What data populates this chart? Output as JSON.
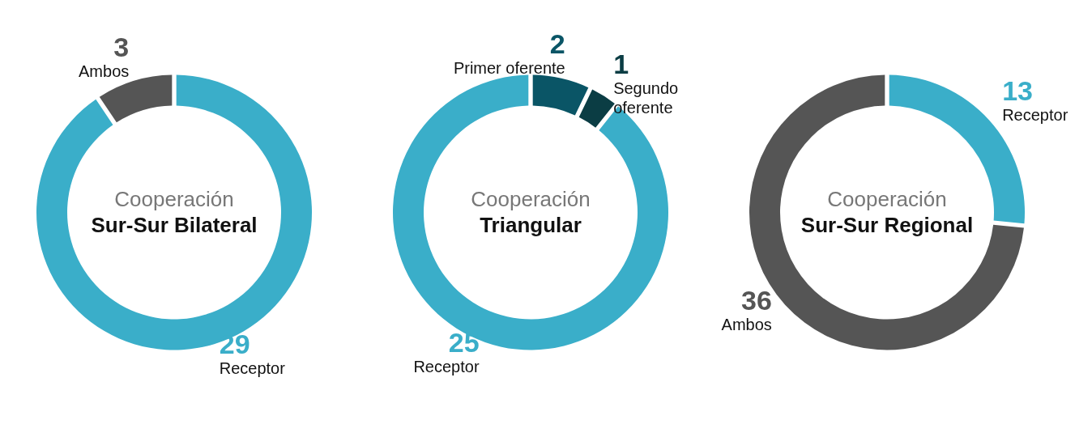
{
  "chart_data": [
    {
      "type": "donut",
      "title": "Cooperación",
      "subtitle": "Sur-Sur Bilateral",
      "categories": [
        "Receptor",
        "Ambos"
      ],
      "values": [
        29,
        3
      ],
      "colors": [
        "#3aaec9",
        "#555555"
      ],
      "data_labels": true
    },
    {
      "type": "donut",
      "title": "Cooperación",
      "subtitle": "Triangular",
      "categories": [
        "Primer oferente",
        "Segundo oferente",
        "Receptor"
      ],
      "values": [
        2,
        1,
        25
      ],
      "colors": [
        "#0a5566",
        "#0b3d44",
        "#3aaec9"
      ],
      "data_labels": true
    },
    {
      "type": "donut",
      "title": "Cooperación",
      "subtitle": "Sur-Sur Regional",
      "categories": [
        "Receptor",
        "Ambos"
      ],
      "values": [
        13,
        36
      ],
      "colors": [
        "#3aaec9",
        "#555555"
      ],
      "data_labels": true
    }
  ]
}
